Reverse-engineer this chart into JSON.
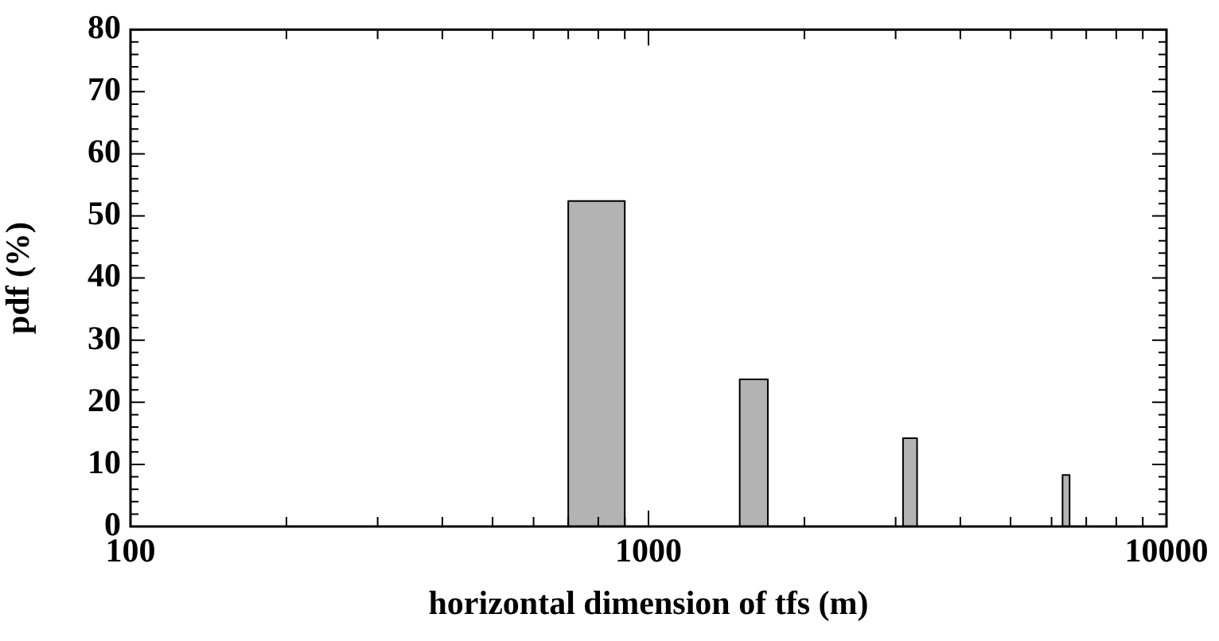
{
  "chart_data": {
    "type": "histogram",
    "xlabel": "horizontal dimension of tfs (m)",
    "ylabel": "pdf (%)",
    "bins": [
      700,
      900,
      1500,
      1700,
      3100,
      3300,
      6300,
      6500
    ],
    "values": [
      52.4,
      0,
      23.7,
      0,
      14.2,
      0,
      8.3
    ],
    "color": "#b3b3b3",
    "log": "x",
    "xlim": [
      100,
      10000
    ],
    "xticks": [
      100,
      {
        "value": 200,
        "label": null
      },
      {
        "value": 300,
        "label": null
      },
      {
        "value": 400,
        "label": null
      },
      {
        "value": 500,
        "label": null
      },
      {
        "value": 600,
        "label": null
      },
      {
        "value": 700,
        "label": null
      },
      {
        "value": 800,
        "label": null
      },
      {
        "value": 900,
        "label": null
      },
      1000,
      {
        "value": 2000,
        "label": null
      },
      {
        "value": 3000,
        "label": null
      },
      {
        "value": 4000,
        "label": null
      },
      {
        "value": 5000,
        "label": null
      },
      {
        "value": 6000,
        "label": null
      },
      {
        "value": 7000,
        "label": null
      },
      {
        "value": 8000,
        "label": null
      },
      {
        "value": 9000,
        "label": null
      },
      10000
    ],
    "ylim": [
      0,
      80
    ],
    "yticks": [
      0,
      {
        "value": 2,
        "label": null
      },
      {
        "value": 4,
        "label": null
      },
      {
        "value": 6,
        "label": null
      },
      {
        "value": 8,
        "label": null
      },
      10,
      {
        "value": 12,
        "label": null
      },
      {
        "value": 14,
        "label": null
      },
      {
        "value": 16,
        "label": null
      },
      {
        "value": 18,
        "label": null
      },
      20,
      {
        "value": 22,
        "label": null
      },
      {
        "value": 24,
        "label": null
      },
      {
        "value": 26,
        "label": null
      },
      {
        "value": 28,
        "label": null
      },
      30,
      {
        "value": 32,
        "label": null
      },
      {
        "value": 34,
        "label": null
      },
      {
        "value": 36,
        "label": null
      },
      {
        "value": 38,
        "label": null
      },
      40,
      {
        "value": 42,
        "label": null
      },
      {
        "value": 44,
        "label": null
      },
      {
        "value": 46,
        "label": null
      },
      {
        "value": 48,
        "label": null
      },
      50,
      {
        "value": 52,
        "label": null
      },
      {
        "value": 54,
        "label": null
      },
      {
        "value": 56,
        "label": null
      },
      {
        "value": 58,
        "label": null
      },
      60,
      {
        "value": 62,
        "label": null
      },
      {
        "value": 64,
        "label": null
      },
      {
        "value": 66,
        "label": null
      },
      {
        "value": 68,
        "label": null
      },
      70,
      {
        "value": 72,
        "label": null
      },
      {
        "value": 74,
        "label": null
      },
      {
        "value": 76,
        "label": null
      },
      {
        "value": 78,
        "label": null
      },
      80
    ],
    "grid": false,
    "legend": false
  }
}
